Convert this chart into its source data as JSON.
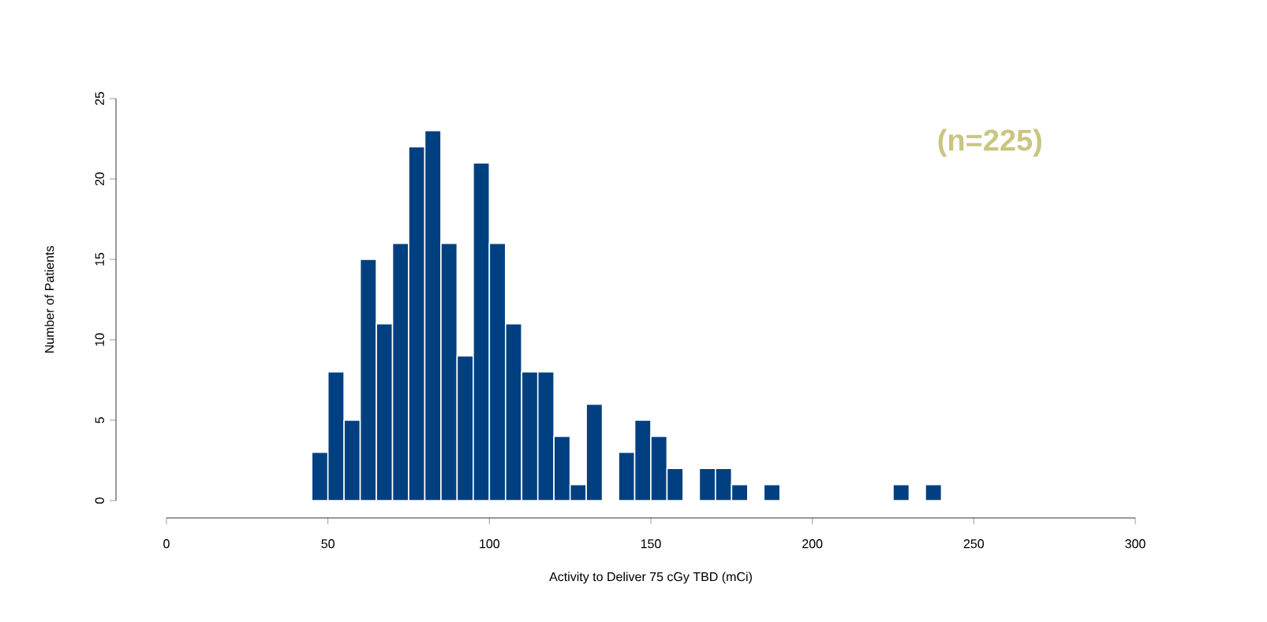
{
  "chart_data": {
    "type": "histogram",
    "xlabel": "Activity to Deliver 75 cGy TBD (mCi)",
    "ylabel": "Number of Patients",
    "annotations": [
      "(n=225)"
    ],
    "bins": [
      45,
      50,
      55,
      60,
      65,
      70,
      75,
      80,
      85,
      90,
      95,
      100,
      105,
      110,
      115,
      120,
      125,
      130,
      135,
      140,
      145,
      150,
      155,
      160,
      165,
      170,
      175,
      180,
      185,
      190,
      195,
      200,
      205,
      210,
      215,
      220,
      225,
      230,
      235,
      240
    ],
    "values": [
      3,
      8,
      5,
      15,
      11,
      16,
      22,
      23,
      16,
      9,
      21,
      16,
      11,
      8,
      8,
      4,
      1,
      6,
      0,
      3,
      5,
      4,
      2,
      0,
      2,
      2,
      1,
      0,
      1,
      0,
      0,
      0,
      0,
      0,
      0,
      0,
      1,
      0,
      1
    ],
    "color": "#004080",
    "xlim": [
      0,
      300
    ],
    "ylim": [
      0,
      25
    ],
    "xticks": [
      0,
      50,
      100,
      150,
      200,
      250,
      300
    ],
    "yticks": [
      0,
      5,
      10,
      15,
      20,
      25
    ]
  }
}
